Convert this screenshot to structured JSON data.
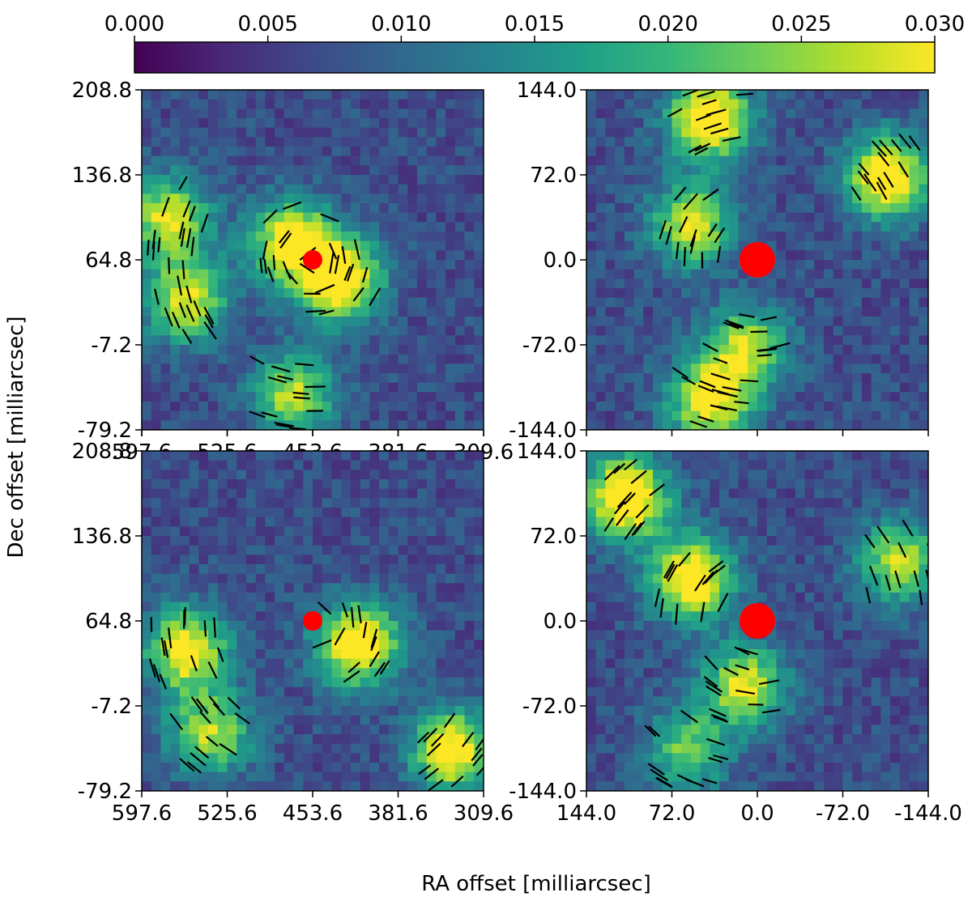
{
  "colors": {
    "colormap": [
      "#440154",
      "#482878",
      "#3e4a89",
      "#31688e",
      "#26828e",
      "#1f9e89",
      "#35b779",
      "#6ece58",
      "#b5de2b",
      "#fde725"
    ],
    "star": "#ff0000",
    "vectors": "#000000"
  },
  "chart_data": {
    "type": "heatmap",
    "colorbar": {
      "range": [
        0.0,
        0.03
      ],
      "ticks": [
        "0.000",
        "0.005",
        "0.010",
        "0.015",
        "0.020",
        "0.025",
        "0.030"
      ],
      "placement": "top"
    },
    "xlabel": "RA offset [milliarcsec]",
    "ylabel": "Dec offset [milliarcsec]",
    "panels": [
      {
        "id": "top-left",
        "xlim": [
          597.6,
          309.6
        ],
        "ylim": [
          -79.2,
          208.8
        ],
        "xticks": [
          "597.6",
          "525.6",
          "453.6",
          "381.6",
          "309.6"
        ],
        "yticks": [
          "208.8",
          "136.8",
          "64.8",
          "-7.2",
          "-79.2"
        ],
        "star": {
          "x": 453.6,
          "y": 64.8,
          "size": "small"
        },
        "features": [
          {
            "x": 430,
            "y": 48,
            "level": 0.028
          },
          {
            "x": 470,
            "y": 80,
            "level": 0.026
          },
          {
            "x": 575,
            "y": 100,
            "level": 0.022
          },
          {
            "x": 560,
            "y": 30,
            "level": 0.022
          },
          {
            "x": 470,
            "y": -50,
            "level": 0.02
          }
        ]
      },
      {
        "id": "top-right",
        "xlim": [
          144.0,
          -144.0
        ],
        "ylim": [
          -144.0,
          144.0
        ],
        "xticks": [],
        "yticks": [
          "144.0",
          "72.0",
          "0.0",
          "-72.0",
          "-144.0"
        ],
        "star": {
          "x": 0.0,
          "y": 0.0,
          "size": "large"
        },
        "features": [
          {
            "x": 40,
            "y": 120,
            "level": 0.029
          },
          {
            "x": -110,
            "y": 70,
            "level": 0.028
          },
          {
            "x": 55,
            "y": 30,
            "level": 0.022
          },
          {
            "x": 10,
            "y": -75,
            "level": 0.02
          },
          {
            "x": 40,
            "y": -120,
            "level": 0.024
          }
        ]
      },
      {
        "id": "bottom-left",
        "xlim": [
          597.6,
          309.6
        ],
        "ylim": [
          -79.2,
          208.8
        ],
        "xticks": [
          "597.6",
          "525.6",
          "453.6",
          "381.6",
          "309.6"
        ],
        "yticks": [
          "208.8",
          "136.8",
          "64.8",
          "-7.2",
          "-79.2"
        ],
        "star": {
          "x": 453.6,
          "y": 64.8,
          "size": "small"
        },
        "features": [
          {
            "x": 415,
            "y": 45,
            "level": 0.028
          },
          {
            "x": 560,
            "y": 40,
            "level": 0.025
          },
          {
            "x": 335,
            "y": -45,
            "level": 0.026
          },
          {
            "x": 540,
            "y": -30,
            "level": 0.02
          }
        ]
      },
      {
        "id": "bottom-right",
        "xlim": [
          144.0,
          -144.0
        ],
        "ylim": [
          -144.0,
          144.0
        ],
        "xticks": [
          "144.0",
          "72.0",
          "0.0",
          "-72.0",
          "-144.0"
        ],
        "yticks": [
          "144.0",
          "72.0",
          "0.0",
          "-72.0",
          "-144.0"
        ],
        "star": {
          "x": 0.0,
          "y": 0.0,
          "size": "large"
        },
        "features": [
          {
            "x": 110,
            "y": 105,
            "level": 0.03
          },
          {
            "x": 55,
            "y": 35,
            "level": 0.028
          },
          {
            "x": -120,
            "y": 50,
            "level": 0.02
          },
          {
            "x": 10,
            "y": -55,
            "level": 0.022
          },
          {
            "x": 60,
            "y": -110,
            "level": 0.016
          }
        ]
      }
    ]
  }
}
